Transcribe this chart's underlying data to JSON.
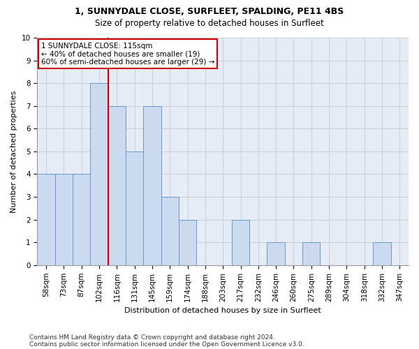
{
  "title1": "1, SUNNYDALE CLOSE, SURFLEET, SPALDING, PE11 4BS",
  "title2": "Size of property relative to detached houses in Surfleet",
  "xlabel": "Distribution of detached houses by size in Surfleet",
  "ylabel": "Number of detached properties",
  "bins": [
    "58sqm",
    "73sqm",
    "87sqm",
    "102sqm",
    "116sqm",
    "131sqm",
    "145sqm",
    "159sqm",
    "174sqm",
    "188sqm",
    "203sqm",
    "217sqm",
    "232sqm",
    "246sqm",
    "260sqm",
    "275sqm",
    "289sqm",
    "304sqm",
    "318sqm",
    "332sqm",
    "347sqm"
  ],
  "values": [
    4,
    4,
    4,
    8,
    7,
    5,
    7,
    3,
    2,
    0,
    0,
    2,
    0,
    1,
    0,
    1,
    0,
    0,
    0,
    1,
    0
  ],
  "bar_color": "#ccdaf0",
  "bar_edge_color": "#6699cc",
  "property_line_x": 3.5,
  "property_line_color": "#cc0000",
  "annotation_text": "1 SUNNYDALE CLOSE: 115sqm\n← 40% of detached houses are smaller (19)\n60% of semi-detached houses are larger (29) →",
  "annotation_box_color": "#cc0000",
  "ylim": [
    0,
    10
  ],
  "yticks": [
    0,
    1,
    2,
    3,
    4,
    5,
    6,
    7,
    8,
    9,
    10
  ],
  "grid_color": "#c8c8d0",
  "background_color": "#e6ecf5",
  "footer1": "Contains HM Land Registry data © Crown copyright and database right 2024.",
  "footer2": "Contains public sector information licensed under the Open Government Licence v3.0.",
  "title1_fontsize": 9,
  "title2_fontsize": 8.5,
  "xlabel_fontsize": 8,
  "ylabel_fontsize": 8,
  "tick_fontsize": 7.5,
  "annot_fontsize": 7.5,
  "footer_fontsize": 6.5
}
